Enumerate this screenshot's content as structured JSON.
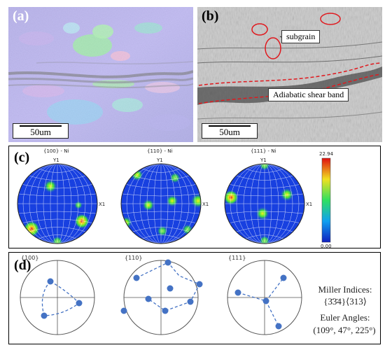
{
  "panel_a": {
    "label": "(a)",
    "scale_bar": "50um"
  },
  "panel_b": {
    "label": "(b)",
    "scale_bar": "50um",
    "annotations": {
      "subgrain": "subgrain",
      "shear_band": "Adiabatic shear band"
    },
    "highlight_color": "#e0191e"
  },
  "panel_c": {
    "label": "(c)",
    "pole_figures": [
      {
        "title": "{100} - Ni",
        "y_axis": "Y1",
        "x_axis": "X1"
      },
      {
        "title": "{110} - Ni",
        "y_axis": "Y1",
        "x_axis": "X1"
      },
      {
        "title": "{111} - Ni",
        "y_axis": "Y1",
        "x_axis": "X1"
      }
    ],
    "colorbar": {
      "max": "22.94",
      "min": "0.00"
    },
    "background_color": "#1840e0"
  },
  "panel_d": {
    "label": "(d)",
    "plots": [
      {
        "title": "{100}"
      },
      {
        "title": "{110}"
      },
      {
        "title": "{111}"
      }
    ],
    "miller_label": "Miller Indices:",
    "miller_value": "{3̄3̄4}⟨313⟩",
    "euler_label": "Euler Angles:",
    "euler_value": "(109°, 47°, 225°)",
    "point_color": "#4472c4"
  }
}
